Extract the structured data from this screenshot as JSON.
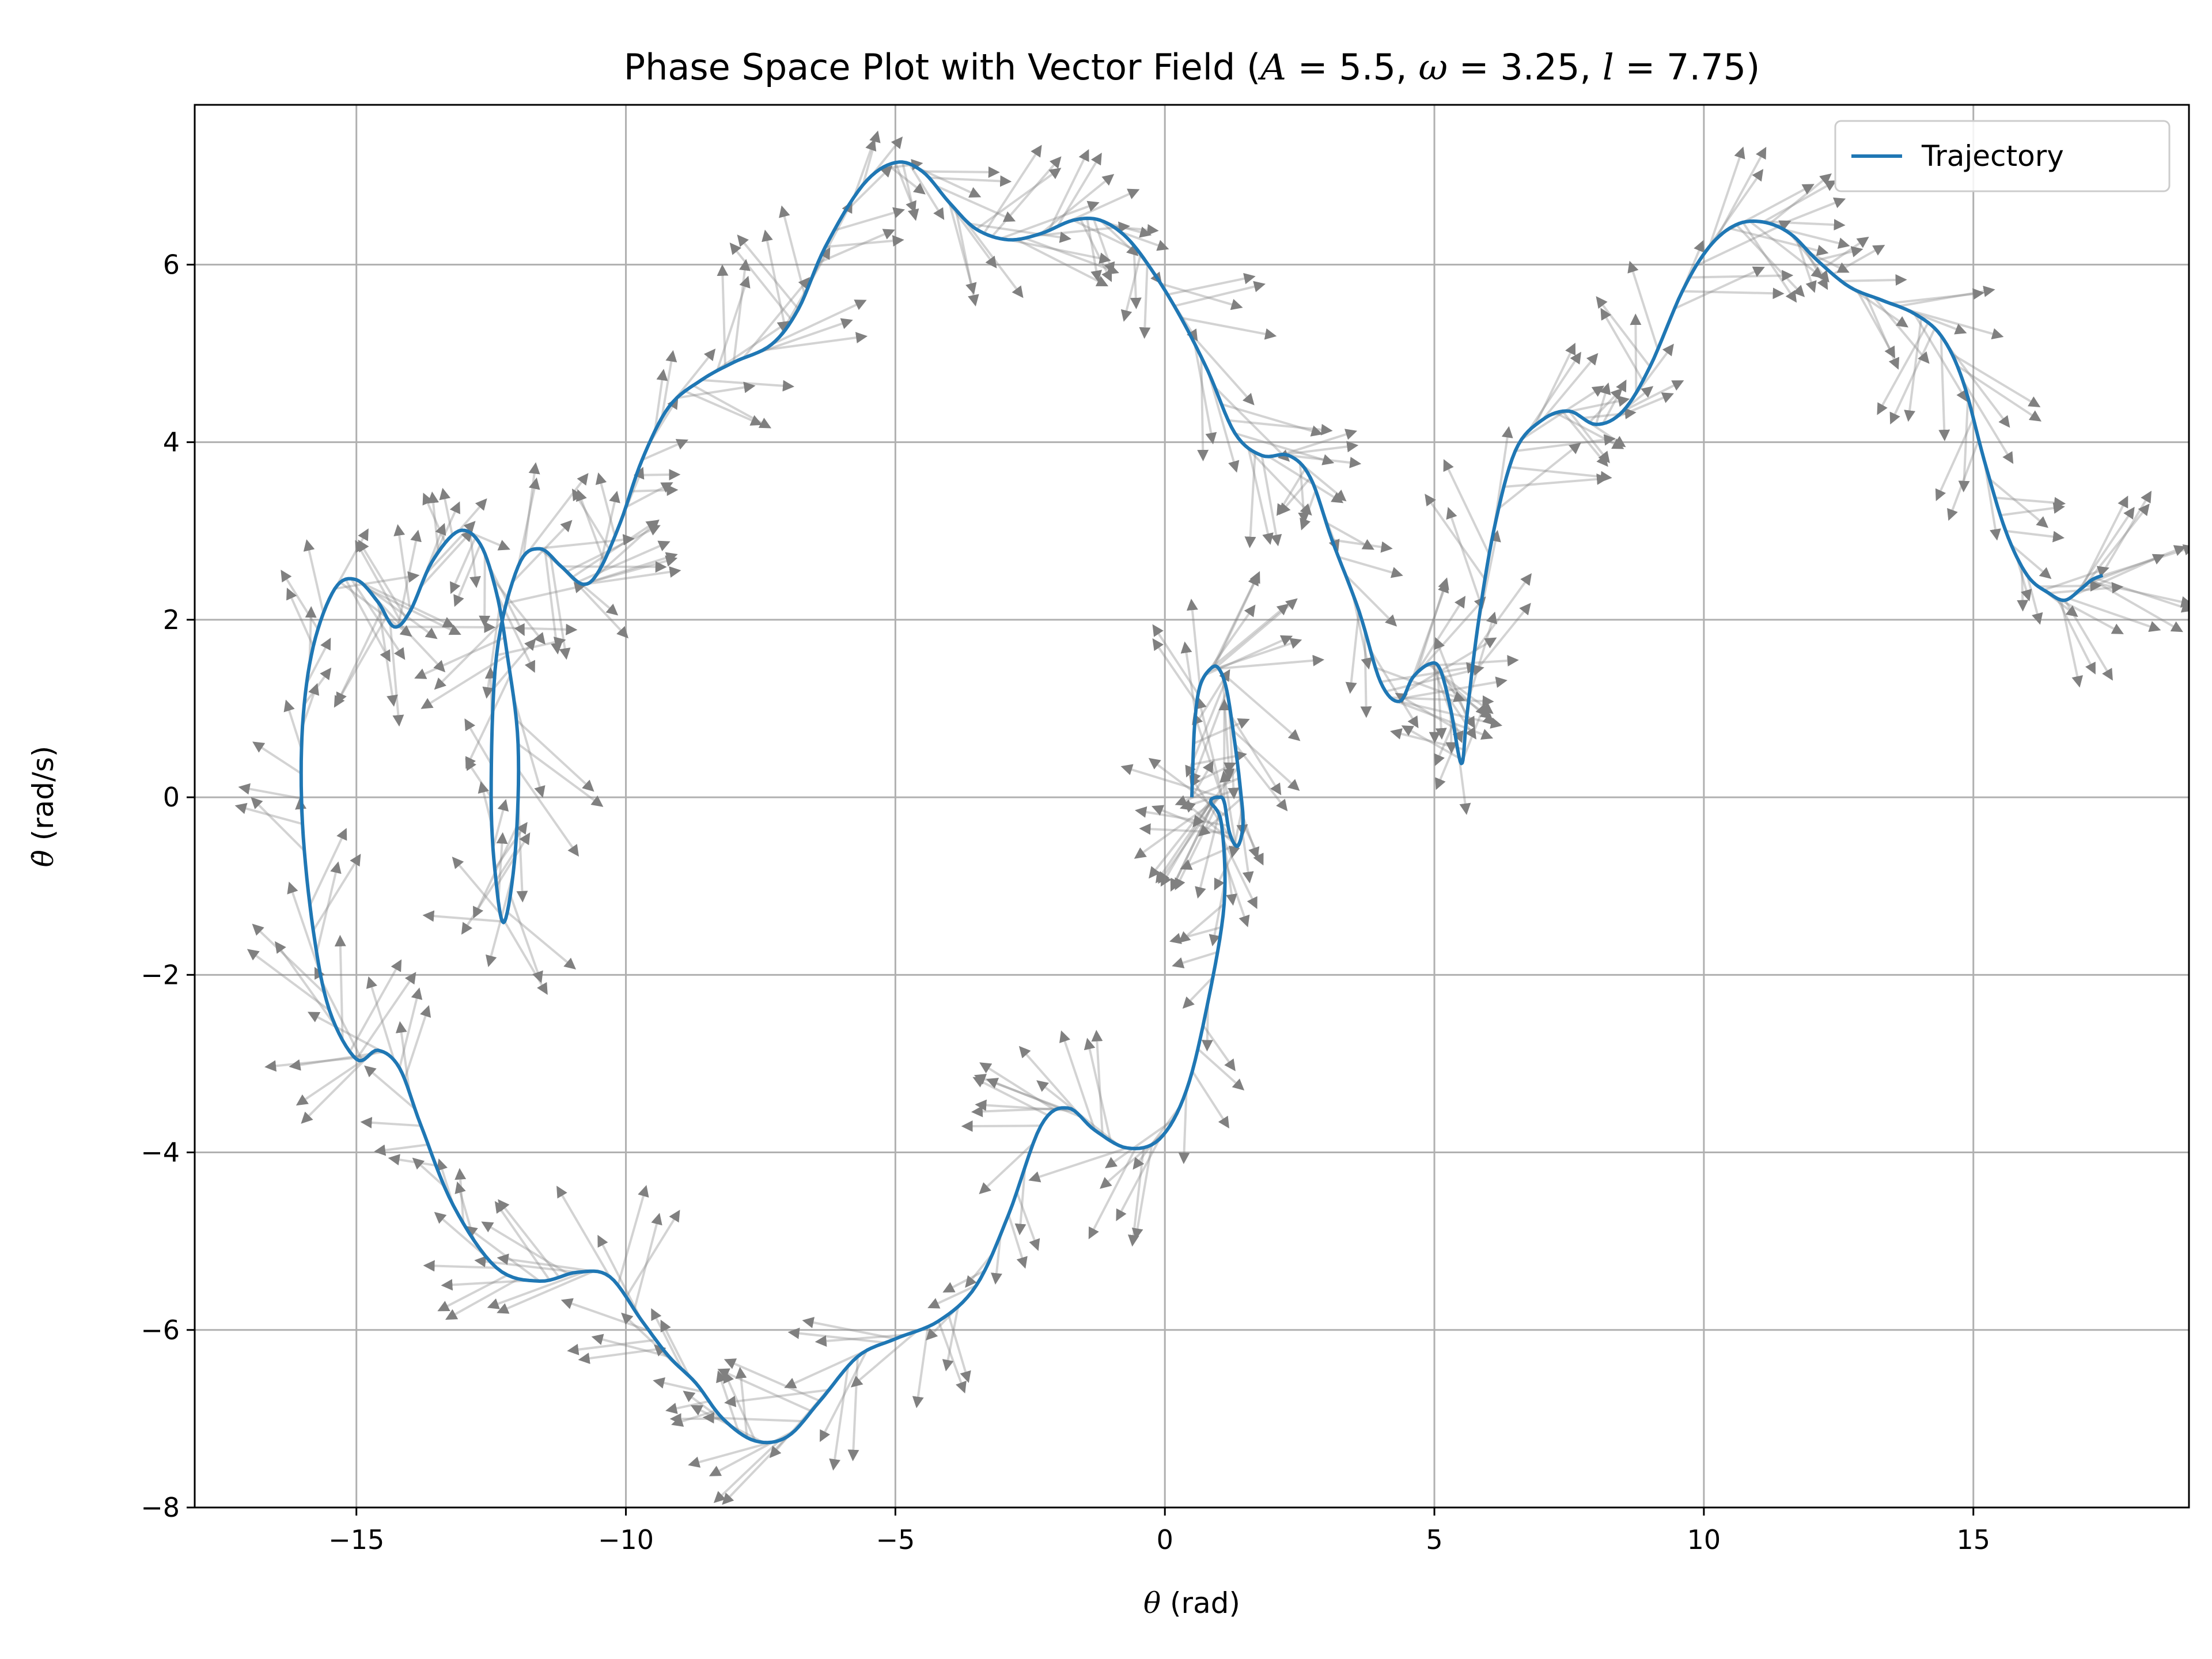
{
  "chart_data": {
    "type": "line",
    "title": "Phase Space Plot with Vector Field (A = 5.5, ω = 3.25, l = 7.75)",
    "title_parts": {
      "prefix": "Phase Space Plot with Vector Field (",
      "params": [
        {
          "symbol": "A",
          "value": "5.5"
        },
        {
          "symbol": "ω",
          "value": "3.25"
        },
        {
          "symbol": "l",
          "value": "7.75"
        }
      ],
      "suffix": ")"
    },
    "xlabel": {
      "symbol": "θ",
      "text": " (rad)"
    },
    "ylabel": {
      "symbol": "θ̇",
      "text": " (rad/s)"
    },
    "xlim": [
      -18,
      19
    ],
    "ylim": [
      -8,
      7.8
    ],
    "xticks": [
      -15,
      -10,
      -5,
      0,
      5,
      10,
      15
    ],
    "xtick_labels": [
      "−15",
      "−10",
      "−5",
      "0",
      "5",
      "10",
      "15"
    ],
    "yticks": [
      -8,
      -6,
      -4,
      -2,
      0,
      2,
      4,
      6
    ],
    "ytick_labels": [
      "−8",
      "−6",
      "−4",
      "−2",
      "0",
      "2",
      "4",
      "6"
    ],
    "grid": true,
    "legend": {
      "position": "top-right",
      "entries": [
        "Trajectory"
      ]
    },
    "colors": {
      "trajectory": "#1f77b4",
      "vector_field": "#808080",
      "grid": "#b0b0b0"
    },
    "series": [
      {
        "name": "Trajectory",
        "points": [
          [
            0.5,
            0.0
          ],
          [
            0.55,
            0.8
          ],
          [
            0.65,
            1.25
          ],
          [
            0.85,
            1.45
          ],
          [
            1.0,
            1.45
          ],
          [
            1.15,
            1.2
          ],
          [
            1.3,
            0.6
          ],
          [
            1.4,
            0.1
          ],
          [
            1.45,
            -0.3
          ],
          [
            1.35,
            -0.55
          ],
          [
            1.2,
            -0.4
          ],
          [
            1.1,
            -0.05
          ],
          [
            1.0,
            0.0
          ],
          [
            0.85,
            -0.05
          ],
          [
            1.05,
            -0.3
          ],
          [
            1.1,
            -1.2
          ],
          [
            0.8,
            -2.3
          ],
          [
            0.4,
            -3.3
          ],
          [
            -0.1,
            -3.85
          ],
          [
            -0.7,
            -3.95
          ],
          [
            -1.3,
            -3.75
          ],
          [
            -1.8,
            -3.5
          ],
          [
            -2.3,
            -3.7
          ],
          [
            -2.9,
            -4.7
          ],
          [
            -3.5,
            -5.5
          ],
          [
            -4.2,
            -5.9
          ],
          [
            -5.0,
            -6.1
          ],
          [
            -5.7,
            -6.3
          ],
          [
            -6.4,
            -6.8
          ],
          [
            -7.0,
            -7.2
          ],
          [
            -7.6,
            -7.25
          ],
          [
            -8.2,
            -7.0
          ],
          [
            -8.7,
            -6.6
          ],
          [
            -9.2,
            -6.3
          ],
          [
            -9.7,
            -5.9
          ],
          [
            -10.3,
            -5.4
          ],
          [
            -10.9,
            -5.35
          ],
          [
            -11.6,
            -5.45
          ],
          [
            -12.4,
            -5.3
          ],
          [
            -13.2,
            -4.6
          ],
          [
            -13.8,
            -3.7
          ],
          [
            -14.2,
            -3.05
          ],
          [
            -14.6,
            -2.85
          ],
          [
            -15.0,
            -2.95
          ],
          [
            -15.5,
            -2.4
          ],
          [
            -15.8,
            -1.5
          ],
          [
            -16.0,
            -0.3
          ],
          [
            -16.0,
            0.8
          ],
          [
            -15.8,
            1.7
          ],
          [
            -15.4,
            2.35
          ],
          [
            -15.0,
            2.45
          ],
          [
            -14.6,
            2.2
          ],
          [
            -14.3,
            1.92
          ],
          [
            -14.0,
            2.1
          ],
          [
            -13.6,
            2.65
          ],
          [
            -13.1,
            3.0
          ],
          [
            -12.7,
            2.85
          ],
          [
            -12.4,
            2.3
          ],
          [
            -12.2,
            1.6
          ],
          [
            -12.0,
            0.6
          ],
          [
            -12.05,
            -0.6
          ],
          [
            -12.25,
            -1.4
          ],
          [
            -12.4,
            -1.0
          ],
          [
            -12.5,
            0.0
          ],
          [
            -12.4,
            1.6
          ],
          [
            -12.0,
            2.6
          ],
          [
            -11.6,
            2.8
          ],
          [
            -11.2,
            2.6
          ],
          [
            -10.8,
            2.4
          ],
          [
            -10.5,
            2.55
          ],
          [
            -10.1,
            3.1
          ],
          [
            -9.7,
            3.8
          ],
          [
            -9.2,
            4.4
          ],
          [
            -8.6,
            4.7
          ],
          [
            -8.0,
            4.9
          ],
          [
            -7.3,
            5.1
          ],
          [
            -6.8,
            5.5
          ],
          [
            -6.3,
            6.2
          ],
          [
            -5.6,
            6.9
          ],
          [
            -5.0,
            7.15
          ],
          [
            -4.5,
            7.05
          ],
          [
            -4.0,
            6.7
          ],
          [
            -3.5,
            6.4
          ],
          [
            -2.9,
            6.28
          ],
          [
            -2.3,
            6.35
          ],
          [
            -1.7,
            6.5
          ],
          [
            -1.2,
            6.5
          ],
          [
            -0.7,
            6.3
          ],
          [
            -0.2,
            5.9
          ],
          [
            0.3,
            5.4
          ],
          [
            0.8,
            4.8
          ],
          [
            1.3,
            4.1
          ],
          [
            1.8,
            3.85
          ],
          [
            2.3,
            3.85
          ],
          [
            2.7,
            3.6
          ],
          [
            3.1,
            2.9
          ],
          [
            3.6,
            2.1
          ],
          [
            4.0,
            1.3
          ],
          [
            4.35,
            1.08
          ],
          [
            4.6,
            1.35
          ],
          [
            4.9,
            1.5
          ],
          [
            5.1,
            1.45
          ],
          [
            5.3,
            1.0
          ],
          [
            5.5,
            0.38
          ],
          [
            5.6,
            0.9
          ],
          [
            5.8,
            1.9
          ],
          [
            6.1,
            3.0
          ],
          [
            6.5,
            3.9
          ],
          [
            7.0,
            4.25
          ],
          [
            7.5,
            4.35
          ],
          [
            8.0,
            4.2
          ],
          [
            8.5,
            4.35
          ],
          [
            9.0,
            4.85
          ],
          [
            9.6,
            5.7
          ],
          [
            10.1,
            6.2
          ],
          [
            10.6,
            6.45
          ],
          [
            11.1,
            6.48
          ],
          [
            11.6,
            6.35
          ],
          [
            12.1,
            6.05
          ],
          [
            12.7,
            5.75
          ],
          [
            13.3,
            5.6
          ],
          [
            13.9,
            5.45
          ],
          [
            14.4,
            5.2
          ],
          [
            14.8,
            4.7
          ],
          [
            15.2,
            3.8
          ],
          [
            15.6,
            3.0
          ],
          [
            16.0,
            2.5
          ],
          [
            16.4,
            2.3
          ],
          [
            16.7,
            2.22
          ],
          [
            17.0,
            2.35
          ],
          [
            17.2,
            2.45
          ],
          [
            17.4,
            2.5
          ]
        ]
      }
    ],
    "vector_field": {
      "arrow_count": 440,
      "opacity": 0.35
    }
  }
}
